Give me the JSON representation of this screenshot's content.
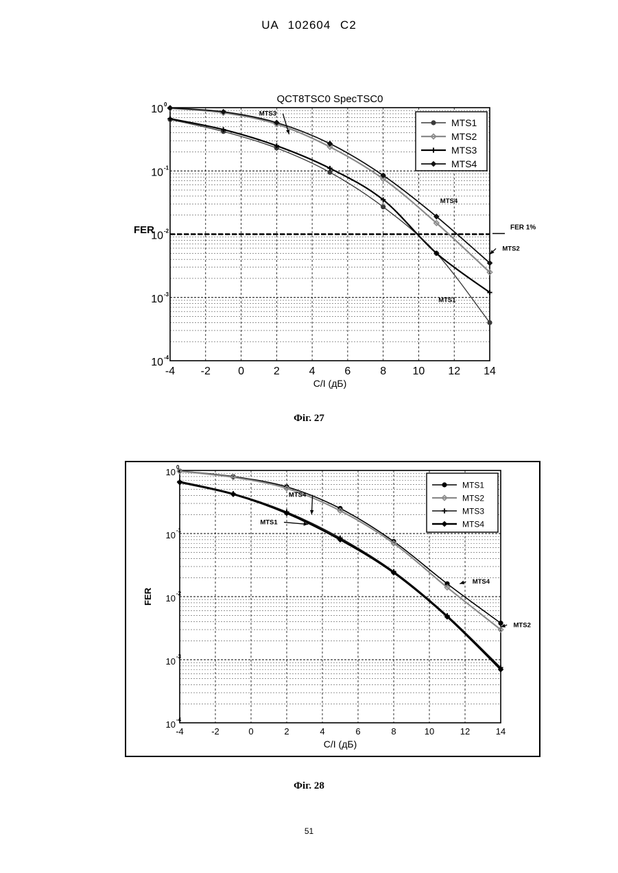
{
  "page": {
    "header": "UA 102604 C2",
    "page_number": "51"
  },
  "chart_data": [
    {
      "id": "fig27",
      "type": "line",
      "caption": "Фіг. 27",
      "title": "QCT8TSC0 SpecTSC0",
      "xlabel": "C/I (дБ)",
      "ylabel": "FER",
      "y_scale": "log",
      "xlim": [
        -4,
        14
      ],
      "ylim": [
        0.0001,
        1
      ],
      "x_ticks": [
        -4,
        -2,
        0,
        2,
        4,
        6,
        8,
        10,
        12,
        14
      ],
      "x_tick_labels": [
        "-4",
        "-2",
        "0",
        "2",
        "4",
        "6",
        "8",
        "10",
        "12",
        "14"
      ],
      "y_ticks": [
        {
          "base": "10",
          "exp": "0",
          "value": 1
        },
        {
          "base": "10",
          "exp": "-1",
          "value": 0.1
        },
        {
          "base": "10",
          "exp": "-2",
          "value": 0.01
        },
        {
          "base": "10",
          "exp": "-3",
          "value": 0.001
        },
        {
          "base": "10",
          "exp": "-4",
          "value": 0.0001
        }
      ],
      "grid": true,
      "legend_position": "top-right",
      "x": [
        -4,
        -1,
        2,
        5,
        8,
        11,
        14
      ],
      "series": [
        {
          "name": "MTS1",
          "color": "#3a3a3a",
          "width": 1.4,
          "marker": "dot",
          "values": [
            0.65,
            0.42,
            0.23,
            0.095,
            0.027,
            0.005,
            0.0004
          ]
        },
        {
          "name": "MTS2",
          "color": "#8a8a8a",
          "width": 2.2,
          "marker": "diamond",
          "values": [
            0.98,
            0.83,
            0.55,
            0.24,
            0.075,
            0.015,
            0.0025
          ]
        },
        {
          "name": "MTS3",
          "color": "#000000",
          "width": 2.2,
          "marker": "plus",
          "values": [
            0.67,
            0.45,
            0.25,
            0.11,
            0.035,
            0.005,
            0.0012
          ]
        },
        {
          "name": "MTS4",
          "color": "#111111",
          "width": 1.8,
          "marker": "star",
          "values": [
            0.99,
            0.86,
            0.58,
            0.27,
            0.085,
            0.019,
            0.0035
          ]
        }
      ],
      "reference_line": {
        "value": 0.01,
        "label": "FER 1%"
      },
      "annotations": [
        {
          "text": "MTS3",
          "x": 1.5,
          "y": 0.75,
          "arrow_to": [
            2.7,
            0.38
          ]
        },
        {
          "text": "MTS4",
          "x": 11.7,
          "y": 0.031,
          "arrow_to": null
        },
        {
          "text": "MTS2",
          "x": 15.2,
          "y": 0.0055,
          "arrow_to": [
            14,
            0.0048
          ]
        },
        {
          "text": "MTS1",
          "x": 11.6,
          "y": 0.00085,
          "arrow_to": null
        }
      ]
    },
    {
      "id": "fig28",
      "type": "line",
      "caption": "Фіг. 28",
      "title": "",
      "xlabel": "C/I (дБ)",
      "ylabel": "FER",
      "y_scale": "log",
      "xlim": [
        -4,
        14
      ],
      "ylim": [
        0.0001,
        1
      ],
      "x_ticks": [
        -4,
        -2,
        0,
        2,
        4,
        6,
        8,
        10,
        12,
        14
      ],
      "x_tick_labels": [
        "-4",
        "-2",
        "0",
        "2",
        "4",
        "6",
        "8",
        "10",
        "12",
        "14"
      ],
      "y_ticks": [
        {
          "base": "10",
          "exp": "0",
          "value": 1
        },
        {
          "base": "10",
          "exp": "-1",
          "value": 0.1
        },
        {
          "base": "10",
          "exp": "-2",
          "value": 0.01
        },
        {
          "base": "10",
          "exp": "-3",
          "value": 0.001
        },
        {
          "base": "10",
          "exp": "-4",
          "value": 0.0001
        }
      ],
      "grid": true,
      "legend_position": "top-right",
      "x": [
        -4,
        -1,
        2,
        5,
        8,
        11,
        14
      ],
      "series": [
        {
          "name": "MTS1",
          "color": "#000000",
          "width": 1.6,
          "marker": "dot",
          "values": [
            0.98,
            0.8,
            0.55,
            0.25,
            0.075,
            0.016,
            0.0038
          ]
        },
        {
          "name": "MTS2",
          "color": "#8a8a8a",
          "width": 2.2,
          "marker": "diamond",
          "values": [
            0.97,
            0.78,
            0.52,
            0.23,
            0.07,
            0.014,
            0.003
          ]
        },
        {
          "name": "MTS3",
          "color": "#111111",
          "width": 1.6,
          "marker": "plus",
          "values": [
            0.67,
            0.43,
            0.22,
            0.085,
            0.025,
            0.005,
            0.00075
          ]
        },
        {
          "name": "MTS4",
          "color": "#000000",
          "width": 2.6,
          "marker": "star",
          "values": [
            0.65,
            0.42,
            0.21,
            0.08,
            0.024,
            0.0048,
            0.0007
          ]
        }
      ],
      "annotations": [
        {
          "text": "MTS4",
          "x": 2.6,
          "y": 0.38,
          "arrow_to": [
            3.4,
            0.2
          ]
        },
        {
          "text": "MTS1",
          "x": 1.0,
          "y": 0.14,
          "arrow_to": [
            3.2,
            0.14
          ]
        },
        {
          "text": "MTS4",
          "x": 12.9,
          "y": 0.016,
          "arrow_to": [
            11.7,
            0.016
          ]
        },
        {
          "text": "MTS2",
          "x": 15.2,
          "y": 0.0033,
          "arrow_to": [
            14,
            0.0033
          ]
        }
      ]
    }
  ]
}
